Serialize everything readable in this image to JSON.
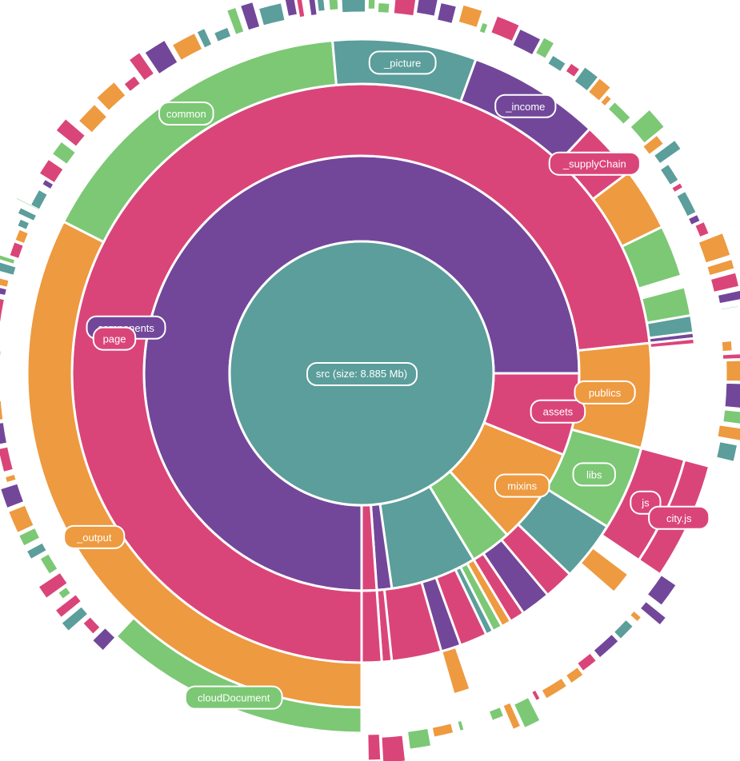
{
  "palette": {
    "teal": "#5B9E9B",
    "purple": "#72479A",
    "pink": "#DA4579",
    "orange": "#EE9A40",
    "green": "#7CC875"
  },
  "chart_data": {
    "type": "sunburst",
    "root": {
      "name": "src",
      "label": "src (size: 8.885 Mb)",
      "color": "teal"
    },
    "level1": [
      {
        "name": "components",
        "start": 22,
        "end": 360,
        "color": "purple"
      },
      {
        "name": "assets",
        "start": 360,
        "end": 382,
        "color": "pink"
      },
      {
        "name": "mixins",
        "start": 382,
        "end": 408,
        "color": "orange"
      },
      {
        "name": "",
        "start": 408,
        "end": 419,
        "color": "green"
      },
      {
        "name": "",
        "start": 419,
        "end": 442,
        "color": "teal"
      },
      {
        "name": "",
        "start": 442,
        "end": 446,
        "color": "purple"
      },
      {
        "name": "",
        "start": 446,
        "end": 450,
        "color": "pink"
      }
    ],
    "level2": [
      {
        "name": "page",
        "start": 22,
        "end": 354,
        "color": "pink"
      },
      {
        "name": "publics",
        "start": 354,
        "end": 375,
        "color": "orange"
      },
      {
        "name": "libs",
        "start": 375,
        "end": 392,
        "color": "green"
      },
      {
        "name": "",
        "start": 392,
        "end": 404,
        "color": "teal"
      },
      {
        "name": "",
        "start": 410,
        "end": 416,
        "color": "purple"
      },
      {
        "name": "",
        "start": 416,
        "end": 419,
        "color": "pink"
      },
      {
        "name": "",
        "start": 419,
        "end": 421,
        "color": "orange"
      },
      {
        "name": "",
        "start": 421,
        "end": 423,
        "color": "green"
      },
      {
        "name": "",
        "start": 423,
        "end": 424.5,
        "color": "teal"
      },
      {
        "name": "",
        "start": 430,
        "end": 434,
        "color": "purple"
      },
      {
        "name": "",
        "start": 444,
        "end": 446,
        "color": "pink"
      },
      {
        "name": "",
        "start": 446,
        "end": 450,
        "color": "pink"
      }
    ],
    "level3": [
      {
        "name": "_output",
        "start": 90,
        "end": 207,
        "color": "orange"
      },
      {
        "name": "common",
        "start": 207,
        "end": 265,
        "color": "green"
      },
      {
        "name": "_picture",
        "start": 265,
        "end": 290,
        "color": "teal"
      },
      {
        "name": "_income",
        "start": 290,
        "end": 313,
        "color": "purple"
      },
      {
        "name": "_supplyChain",
        "start": 313,
        "end": 323,
        "color": "pink"
      },
      {
        "name": "",
        "start": 323,
        "end": 334,
        "color": "orange"
      },
      {
        "name": "",
        "start": 334,
        "end": 343,
        "color": "green"
      },
      {
        "name": "",
        "start": 345,
        "end": 350,
        "color": "green"
      },
      {
        "name": "",
        "start": 350,
        "end": 353,
        "color": "teal"
      },
      {
        "name": "",
        "start": 353,
        "end": 354,
        "color": "purple"
      },
      {
        "name": "",
        "start": 354,
        "end": 355,
        "color": "pink"
      },
      {
        "name": "js",
        "start": 375,
        "end": 394,
        "color": "pink"
      },
      {
        "name": "",
        "start": 397,
        "end": 401,
        "color": "orange"
      },
      {
        "name": "",
        "start": 431,
        "end": 434,
        "color": "orange"
      }
    ],
    "level4": [
      {
        "name": "cloudDocument",
        "start": 90,
        "end": 133,
        "color": "green"
      },
      {
        "name": "city.js",
        "start": 375,
        "end": 394,
        "color": "pink"
      }
    ]
  }
}
